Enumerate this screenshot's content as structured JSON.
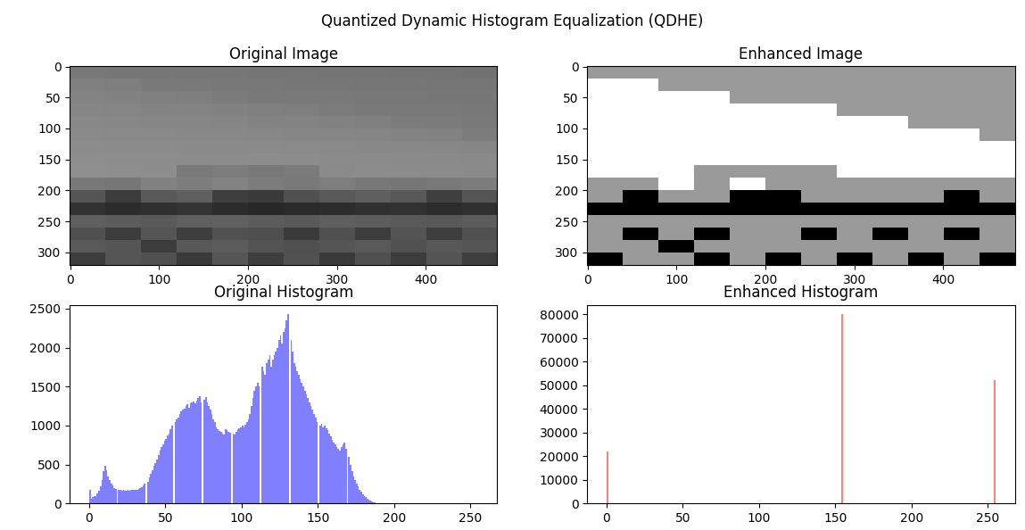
{
  "title": "Quantized Dynamic Histogram Equalization (QDHE)",
  "chart_data": [
    {
      "type": "image",
      "title": "Original Image",
      "xlim": [
        -0.5,
        480.5
      ],
      "ylim": [
        320.5,
        -0.5
      ],
      "xticks": [
        0,
        100,
        200,
        300,
        400
      ],
      "yticks": [
        0,
        50,
        100,
        150,
        200,
        250,
        300
      ],
      "zlim": [
        0,
        255
      ],
      "cells": [
        [
          120,
          119,
          119,
          118,
          118,
          117,
          117,
          116,
          116,
          115,
          115,
          114
        ],
        [
          128,
          126,
          122,
          121,
          120,
          120,
          119,
          119,
          118,
          118,
          117,
          117
        ],
        [
          131,
          130,
          128,
          126,
          123,
          122,
          121,
          121,
          120,
          120,
          119,
          119
        ],
        [
          134,
          133,
          132,
          131,
          130,
          128,
          126,
          123,
          122,
          121,
          121,
          120
        ],
        [
          136,
          135,
          134,
          134,
          133,
          132,
          131,
          130,
          128,
          124,
          123,
          122
        ],
        [
          138,
          137,
          137,
          136,
          136,
          135,
          134,
          134,
          133,
          132,
          130,
          124
        ],
        [
          140,
          139,
          139,
          138,
          138,
          138,
          137,
          137,
          136,
          136,
          135,
          134
        ],
        [
          142,
          141,
          141,
          140,
          140,
          141,
          140,
          139,
          139,
          138,
          138,
          137
        ],
        [
          143,
          142,
          141,
          122,
          124,
          120,
          123,
          138,
          140,
          139,
          139,
          138
        ],
        [
          120,
          118,
          130,
          125,
          132,
          124,
          122,
          126,
          120,
          118,
          122,
          124
        ],
        [
          85,
          60,
          90,
          95,
          62,
          58,
          80,
          90,
          95,
          88,
          64,
          85
        ],
        [
          50,
          45,
          48,
          52,
          45,
          40,
          42,
          45,
          48,
          50,
          45,
          48
        ],
        [
          95,
          92,
          90,
          95,
          98,
          92,
          90,
          95,
          92,
          90,
          88,
          92
        ],
        [
          80,
          60,
          85,
          62,
          82,
          78,
          58,
          80,
          60,
          84,
          62,
          80
        ],
        [
          90,
          85,
          60,
          88,
          92,
          84,
          80,
          86,
          90,
          82,
          88,
          85
        ],
        [
          60,
          85,
          80,
          58,
          86,
          62,
          82,
          58,
          80,
          60,
          84,
          62
        ]
      ]
    },
    {
      "type": "image",
      "title": "Enhanced Image",
      "xlim": [
        -0.5,
        480.5
      ],
      "ylim": [
        320.5,
        -0.5
      ],
      "xticks": [
        0,
        100,
        200,
        300,
        400
      ],
      "yticks": [
        0,
        50,
        100,
        150,
        200,
        250,
        300
      ],
      "zlim": [
        0,
        255
      ],
      "cells": [
        [
          154,
          154,
          154,
          154,
          154,
          154,
          154,
          154,
          154,
          154,
          154,
          154
        ],
        [
          255,
          255,
          154,
          154,
          154,
          154,
          154,
          154,
          154,
          154,
          154,
          154
        ],
        [
          255,
          255,
          255,
          255,
          154,
          154,
          154,
          154,
          154,
          154,
          154,
          154
        ],
        [
          255,
          255,
          255,
          255,
          255,
          255,
          255,
          154,
          154,
          154,
          154,
          154
        ],
        [
          255,
          255,
          255,
          255,
          255,
          255,
          255,
          255,
          255,
          154,
          154,
          154
        ],
        [
          255,
          255,
          255,
          255,
          255,
          255,
          255,
          255,
          255,
          255,
          255,
          154
        ],
        [
          255,
          255,
          255,
          255,
          255,
          255,
          255,
          255,
          255,
          255,
          255,
          255
        ],
        [
          255,
          255,
          255,
          255,
          255,
          255,
          255,
          255,
          255,
          255,
          255,
          255
        ],
        [
          255,
          255,
          255,
          154,
          154,
          154,
          154,
          255,
          255,
          255,
          255,
          255
        ],
        [
          154,
          154,
          255,
          154,
          255,
          154,
          154,
          154,
          154,
          154,
          154,
          154
        ],
        [
          154,
          0,
          154,
          154,
          0,
          0,
          154,
          154,
          154,
          154,
          0,
          154
        ],
        [
          0,
          0,
          0,
          0,
          0,
          0,
          0,
          0,
          0,
          0,
          0,
          0
        ],
        [
          154,
          154,
          154,
          154,
          154,
          154,
          154,
          154,
          154,
          154,
          154,
          154
        ],
        [
          154,
          0,
          154,
          0,
          154,
          154,
          0,
          154,
          0,
          154,
          0,
          154
        ],
        [
          154,
          154,
          0,
          154,
          154,
          154,
          154,
          154,
          154,
          154,
          154,
          154
        ],
        [
          0,
          154,
          154,
          0,
          154,
          0,
          154,
          0,
          154,
          0,
          154,
          0
        ]
      ]
    },
    {
      "type": "histogram",
      "title": "Original Histogram",
      "color": "#7f7fff",
      "xlim": [
        -12.75,
        267.75
      ],
      "ylim": [
        0,
        2550
      ],
      "xticks": [
        0,
        50,
        100,
        150,
        200,
        250
      ],
      "yticks": [
        0,
        500,
        1000,
        1500,
        2000,
        2500
      ],
      "bins": [
        0,
        1,
        2,
        3,
        4,
        5,
        6,
        7,
        8,
        9,
        10,
        11,
        12,
        13,
        14,
        15,
        16,
        17,
        18,
        19,
        20,
        21,
        22,
        23,
        24,
        25,
        26,
        27,
        28,
        29,
        30,
        31,
        32,
        33,
        34,
        35,
        36,
        37,
        38,
        39,
        40,
        41,
        42,
        43,
        44,
        45,
        46,
        47,
        48,
        49,
        50,
        51,
        52,
        53,
        54,
        55,
        56,
        57,
        58,
        59,
        60,
        61,
        62,
        63,
        64,
        65,
        66,
        67,
        68,
        69,
        70,
        71,
        72,
        73,
        74,
        75,
        76,
        77,
        78,
        79,
        80,
        81,
        82,
        83,
        84,
        85,
        86,
        87,
        88,
        89,
        90,
        91,
        92,
        93,
        94,
        95,
        96,
        97,
        98,
        99,
        100,
        101,
        102,
        103,
        104,
        105,
        106,
        107,
        108,
        109,
        110,
        111,
        112,
        113,
        114,
        115,
        116,
        117,
        118,
        119,
        120,
        121,
        122,
        123,
        124,
        125,
        126,
        127,
        128,
        129,
        130,
        131,
        132,
        133,
        134,
        135,
        136,
        137,
        138,
        139,
        140,
        141,
        142,
        143,
        144,
        145,
        146,
        147,
        148,
        149,
        150,
        151,
        152,
        153,
        154,
        155,
        156,
        157,
        158,
        159,
        160,
        161,
        162,
        163,
        164,
        165,
        166,
        167,
        168,
        169,
        170,
        171,
        172,
        173,
        174,
        175,
        176,
        177,
        178,
        179,
        180,
        181,
        182,
        183,
        184,
        185,
        186,
        187,
        188,
        189,
        190,
        191,
        192,
        193,
        194,
        195,
        196,
        197,
        198,
        199,
        200,
        201,
        202,
        203,
        204,
        205,
        206,
        207,
        208,
        209,
        210,
        211,
        212,
        213,
        214,
        215,
        216,
        217,
        218,
        219,
        220,
        221,
        222,
        223,
        224,
        225,
        226,
        227,
        228,
        229,
        230,
        231,
        232,
        233,
        234,
        235,
        236,
        237,
        238,
        239,
        240,
        241,
        242,
        243,
        244,
        245,
        246,
        247,
        248,
        249,
        250,
        251,
        252,
        253,
        254,
        255,
        256
      ],
      "counts": [
        170,
        60,
        80,
        90,
        100,
        130,
        160,
        220,
        300,
        420,
        480,
        430,
        350,
        300,
        260,
        230,
        200,
        190,
        0,
        180,
        170,
        160,
        170,
        160,
        165,
        170,
        160,
        170,
        175,
        170,
        180,
        175,
        190,
        200,
        210,
        230,
        250,
        0,
        280,
        330,
        380,
        430,
        480,
        520,
        570,
        620,
        680,
        720,
        760,
        800,
        830,
        870,
        900,
        950,
        1000,
        0,
        1050,
        1080,
        1100,
        1150,
        1180,
        1200,
        1220,
        1250,
        1270,
        1230,
        1280,
        1300,
        1310,
        1290,
        1320,
        1350,
        1380,
        1300,
        0,
        1330,
        1360,
        1300,
        1250,
        1200,
        1150,
        1080,
        1050,
        980,
        950,
        930,
        920,
        900,
        880,
        950,
        940,
        920,
        910,
        0,
        900,
        890,
        920,
        950,
        960,
        980,
        1000,
        980,
        1010,
        1050,
        1080,
        1150,
        1250,
        1350,
        1450,
        1500,
        1550,
        1500,
        0,
        1750,
        1700,
        1650,
        1800,
        1850,
        1900,
        1750,
        1850,
        1900,
        1950,
        2000,
        2100,
        2150,
        2050,
        2200,
        2250,
        2350,
        2430,
        0,
        2100,
        1950,
        1800,
        1750,
        1700,
        1650,
        1600,
        1550,
        1500,
        1450,
        1400,
        1350,
        1300,
        1250,
        1200,
        1150,
        1100,
        1050,
        0,
        1000,
        1020,
        980,
        1000,
        960,
        940,
        900,
        860,
        820,
        780,
        760,
        720,
        700,
        680,
        720,
        760,
        780,
        700,
        0,
        600,
        500,
        420,
        350,
        300,
        260,
        220,
        180,
        150,
        120,
        100,
        80,
        60,
        45,
        35,
        25,
        18,
        12,
        8,
        5,
        3,
        2,
        1,
        0,
        0,
        0,
        0,
        0,
        0,
        0,
        0,
        0,
        0,
        0,
        0,
        0,
        0,
        0,
        0,
        0,
        0,
        0,
        0,
        0,
        0,
        0,
        0,
        0,
        0,
        0,
        0,
        0,
        0,
        0,
        0,
        0,
        0,
        0,
        0,
        0,
        0,
        0,
        0,
        0,
        0,
        0,
        0,
        0,
        0,
        0,
        0,
        0,
        0,
        0,
        0,
        0,
        0,
        0,
        0,
        0,
        0,
        0,
        0,
        0,
        0,
        0
      ]
    },
    {
      "type": "histogram",
      "title": "Enhanced Histogram",
      "color": "#ff7f7f",
      "xlim": [
        -12.75,
        267.75
      ],
      "ylim": [
        0,
        84000
      ],
      "xticks": [
        0,
        50,
        100,
        150,
        200,
        250
      ],
      "yticks": [
        0,
        10000,
        20000,
        30000,
        40000,
        50000,
        60000,
        70000,
        80000
      ],
      "bins": [
        0,
        1,
        154,
        155,
        254,
        255
      ],
      "counts": [
        22000,
        0,
        80000,
        0,
        52000
      ]
    }
  ]
}
